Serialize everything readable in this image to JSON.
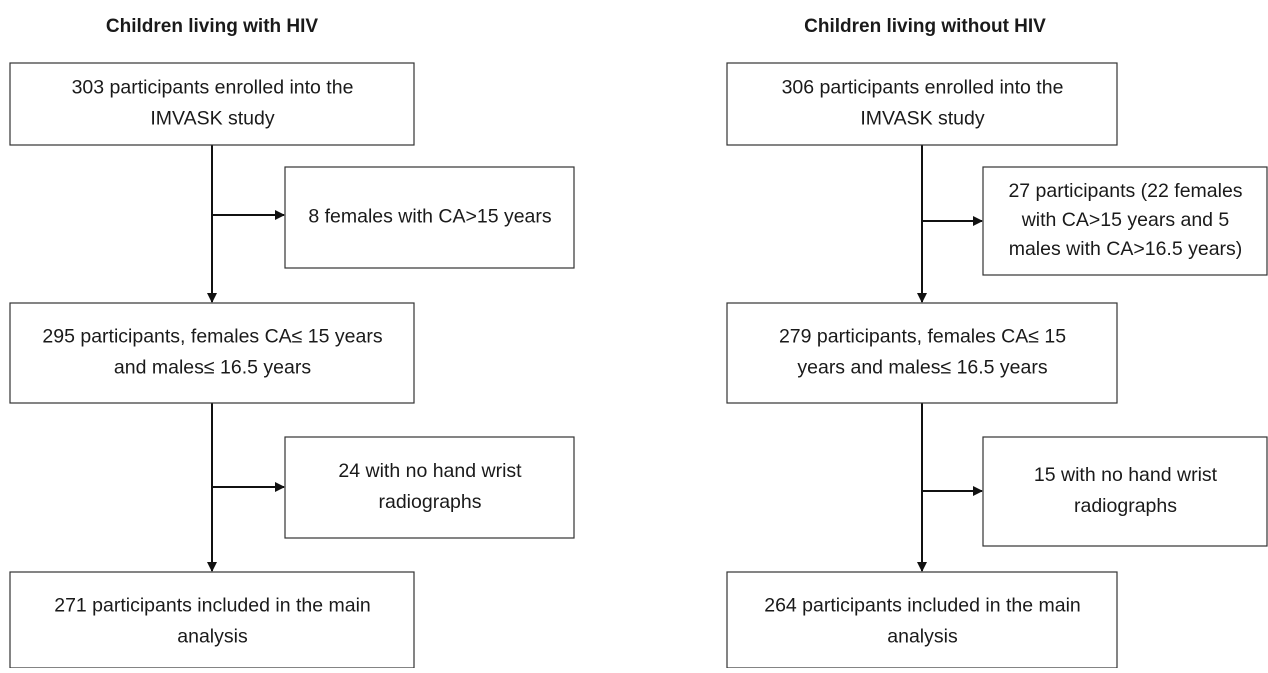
{
  "columns": [
    {
      "title": "Children living with HIV",
      "boxes": [
        {
          "lines": [
            "303 participants enrolled into the",
            "IMVASK study"
          ]
        },
        {
          "lines": [
            "8 females with CA>15 years"
          ]
        },
        {
          "lines": [
            "295 participants, females CA≤ 15 years",
            "and males≤ 16.5 years"
          ]
        },
        {
          "lines": [
            "24 with no hand wrist",
            "radiographs"
          ]
        },
        {
          "lines": [
            "271 participants included in the main",
            "analysis"
          ]
        }
      ]
    },
    {
      "title": "Children living without HIV",
      "boxes": [
        {
          "lines": [
            "306 participants enrolled into the",
            "IMVASK study"
          ]
        },
        {
          "lines": [
            "27 participants (22 females",
            "with CA>15 years and 5",
            "males with CA>16.5 years)"
          ]
        },
        {
          "lines": [
            "279 participants, females CA≤ 15",
            "years and males≤ 16.5 years"
          ]
        },
        {
          "lines": [
            "15 with no hand wrist",
            "radiographs"
          ]
        },
        {
          "lines": [
            "264 participants included in the main",
            "analysis"
          ]
        }
      ]
    }
  ]
}
